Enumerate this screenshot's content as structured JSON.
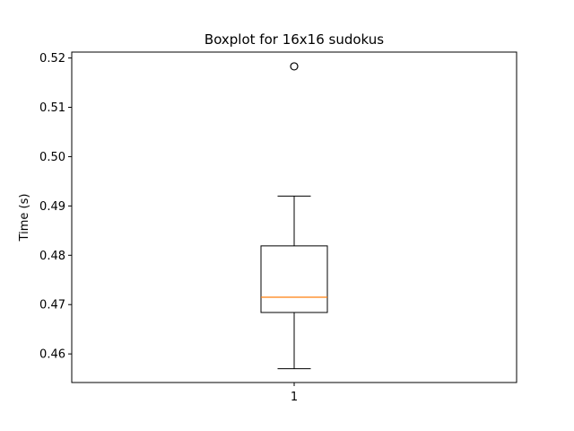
{
  "chart_data": {
    "type": "boxplot",
    "title": "Boxplot for 16x16 sudokus",
    "xlabel": "",
    "ylabel": "Time (s)",
    "ylim": [
      0.4542,
      0.5212
    ],
    "y_ticks": [
      "0.46",
      "0.47",
      "0.48",
      "0.49",
      "0.50",
      "0.51",
      "0.52"
    ],
    "y_tick_values": [
      0.46,
      0.47,
      0.48,
      0.49,
      0.5,
      0.51,
      0.52
    ],
    "categories": [
      "1"
    ],
    "boxes": [
      {
        "category": "1",
        "whisker_low": 0.457,
        "q1": 0.4684,
        "median": 0.4715,
        "q3": 0.4819,
        "whisker_high": 0.492,
        "outliers": [
          0.5183
        ]
      }
    ],
    "grid": false,
    "colors": {
      "box": "#000000",
      "median": "#ff7f0e",
      "whisker": "#000000",
      "outlier": "#000000"
    }
  }
}
